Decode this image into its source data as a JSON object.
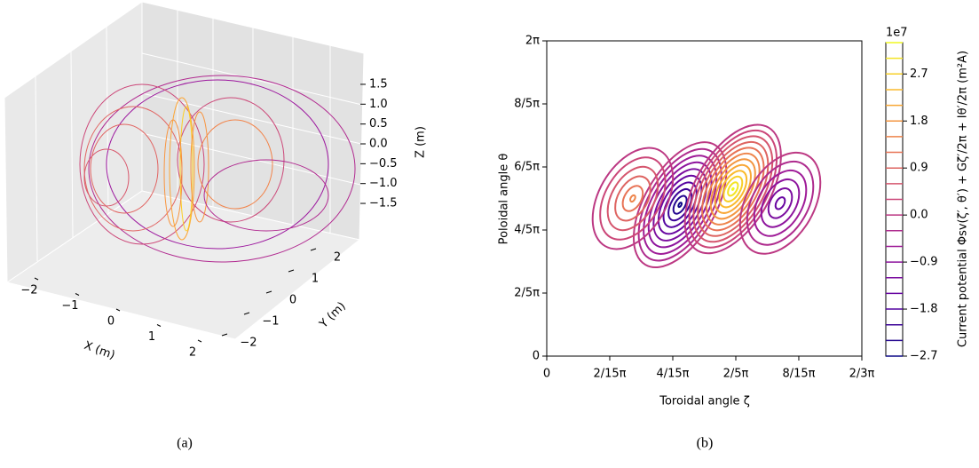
{
  "chart_data": [
    {
      "type": "surface3d",
      "caption": "(a)",
      "xlabel": "X (m)",
      "ylabel": "Y (m)",
      "zlabel": "Z (m)",
      "xticks": [
        {
          "value": -2,
          "label": "−2"
        },
        {
          "value": -1,
          "label": "−1"
        },
        0,
        1,
        2
      ],
      "yticks": [
        {
          "value": -2,
          "label": "−2"
        },
        {
          "value": -1,
          "label": "−1"
        },
        0,
        1,
        2
      ],
      "zticks": [
        {
          "value": -1.5,
          "label": "−1.5"
        },
        {
          "value": -1,
          "label": "−1.0"
        },
        {
          "value": -0.5,
          "label": "−0.5"
        },
        {
          "value": 0,
          "label": "0.0"
        },
        0.5,
        {
          "value": 1,
          "label": "1.0"
        },
        1.5
      ]
    },
    {
      "type": "contour",
      "caption": "(b)",
      "xlabel": "Toroidal angle ζ",
      "ylabel": "Poloidal angle θ",
      "xlim": [
        0,
        0.6667
      ],
      "ylim": [
        0,
        2
      ],
      "xticks": [
        0,
        {
          "value": 0.1333,
          "label": "2/15π"
        },
        {
          "value": 0.2667,
          "label": "4/15π"
        },
        {
          "value": 0.4,
          "label": "2/5π"
        },
        {
          "value": 0.5333,
          "label": "8/15π"
        },
        {
          "value": 0.6667,
          "label": "2/3π"
        }
      ],
      "yticks": [
        0,
        {
          "value": 0.4,
          "label": "2/5π"
        },
        {
          "value": 0.8,
          "label": "4/5π"
        },
        {
          "value": 1.2,
          "label": "6/5π"
        },
        {
          "value": 1.6,
          "label": "8/5π"
        },
        {
          "value": 2,
          "label": "2π"
        }
      ],
      "colormap": "plasma",
      "colorbar_label": "Current potential Φsv(ζ′, θ′) + Gζ′/2π + Iθ′/2π (m²A)",
      "colorbar_offset": "1e7",
      "clim": [
        -2.7,
        3.3
      ],
      "cticks": [
        {
          "value": -2.7,
          "label": "−2.7"
        },
        {
          "value": -1.8,
          "label": "−1.8"
        },
        {
          "value": -0.9,
          "label": "−0.9"
        },
        {
          "value": 0,
          "label": "0.0"
        },
        0.9,
        1.8,
        2.7
      ],
      "levels": [
        -2.7,
        -2.4,
        -2.1,
        -1.8,
        -1.5,
        -1.2,
        -0.9,
        -0.6,
        -0.3,
        0,
        0.3,
        0.6,
        0.9,
        1.2,
        1.5,
        1.8,
        2.1,
        2.4,
        2.7,
        3.0,
        3.3
      ],
      "extrema": [
        {
          "zeta": 0.282,
          "theta": 0.96,
          "value": -2.8
        },
        {
          "zeta": 0.394,
          "theta": 1.06,
          "value": 3.35
        },
        {
          "zeta": 0.182,
          "theta": 1.0,
          "value": 1.6
        },
        {
          "zeta": 0.494,
          "theta": 0.97,
          "value": -1.7
        }
      ]
    }
  ]
}
